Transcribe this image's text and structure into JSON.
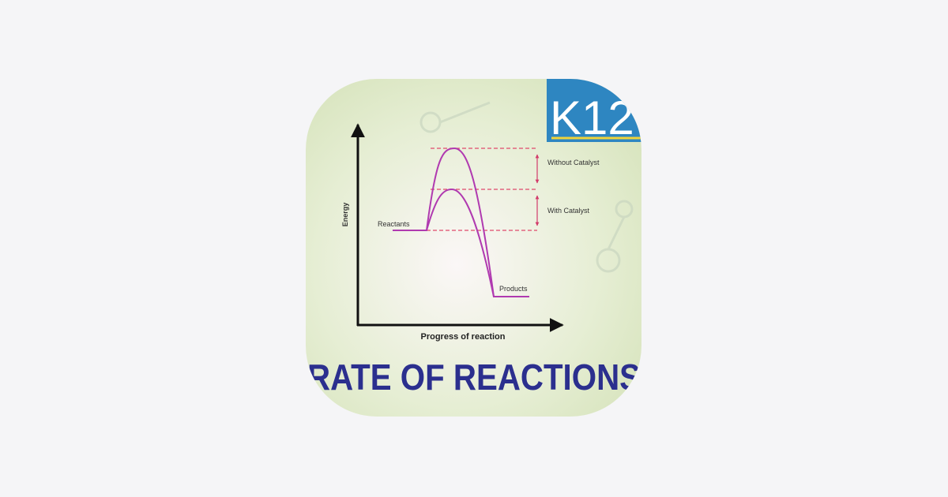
{
  "icon": {
    "logo": "K12",
    "title": "RATE OF REACTIONS"
  },
  "diagram": {
    "y_axis_label": "Energy",
    "x_axis_label": "Progress of reaction",
    "reactants": "Reactants",
    "products": "Products",
    "without_catalyst": "Without Catalyst",
    "with_catalyst": "With Catalyst"
  }
}
